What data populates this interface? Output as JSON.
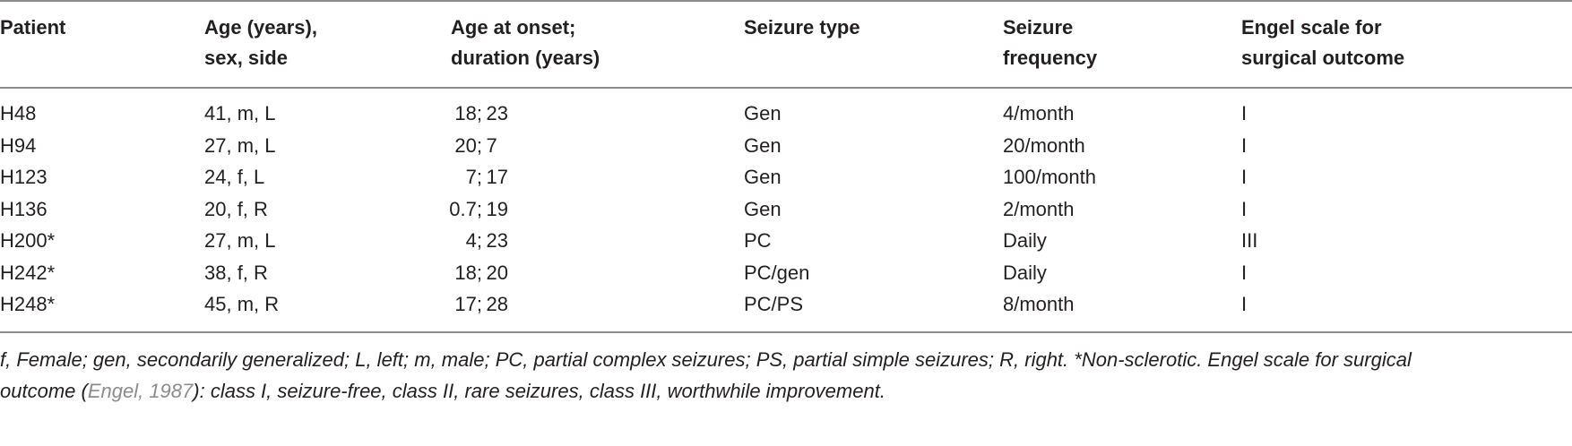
{
  "table": {
    "headers": [
      {
        "line1": "Patient",
        "line2": ""
      },
      {
        "line1": "Age (years),",
        "line2": "sex, side"
      },
      {
        "line1": "Age at onset;",
        "line2": "duration (years)"
      },
      {
        "line1": "Seizure type",
        "line2": ""
      },
      {
        "line1": "Seizure",
        "line2": "frequency"
      },
      {
        "line1": "Engel scale for",
        "line2": "surgical outcome"
      }
    ],
    "rows": [
      {
        "patient": "H48",
        "age_sex_side": "41, m, L",
        "onset": "18;",
        "duration": "23",
        "seizure_type": "Gen",
        "frequency": "4/month",
        "engel": "I"
      },
      {
        "patient": "H94",
        "age_sex_side": "27, m, L",
        "onset": "20;",
        "duration": "7",
        "seizure_type": "Gen",
        "frequency": "20/month",
        "engel": "I"
      },
      {
        "patient": "H123",
        "age_sex_side": "24, f, L",
        "onset": "7;",
        "duration": "17",
        "seizure_type": "Gen",
        "frequency": "100/month",
        "engel": "I"
      },
      {
        "patient": "H136",
        "age_sex_side": "20, f, R",
        "onset": "0.7;",
        "duration": "19",
        "seizure_type": "Gen",
        "frequency": "2/month",
        "engel": "I"
      },
      {
        "patient": "H200*",
        "age_sex_side": "27, m, L",
        "onset": "4;",
        "duration": "23",
        "seizure_type": "PC",
        "frequency": "Daily",
        "engel": "III"
      },
      {
        "patient": "H242*",
        "age_sex_side": "38, f, R",
        "onset": "18;",
        "duration": "20",
        "seizure_type": "PC/gen",
        "frequency": "Daily",
        "engel": "I"
      },
      {
        "patient": "H248*",
        "age_sex_side": "45, m, R",
        "onset": "17;",
        "duration": "28",
        "seizure_type": "PC/PS",
        "frequency": "8/month",
        "engel": "I"
      }
    ]
  },
  "footnote": {
    "line1": "f, Female; gen, secondarily generalized; L, left; m, male; PC, partial complex seizures; PS, partial simple seizures; R, right. *Non-sclerotic. Engel scale for surgical",
    "line2_pre": "outcome (",
    "line2_cite": "Engel, 1987",
    "line2_post": "): class I, seizure-free, class II, rare seizures, class III, worthwhile improvement."
  }
}
